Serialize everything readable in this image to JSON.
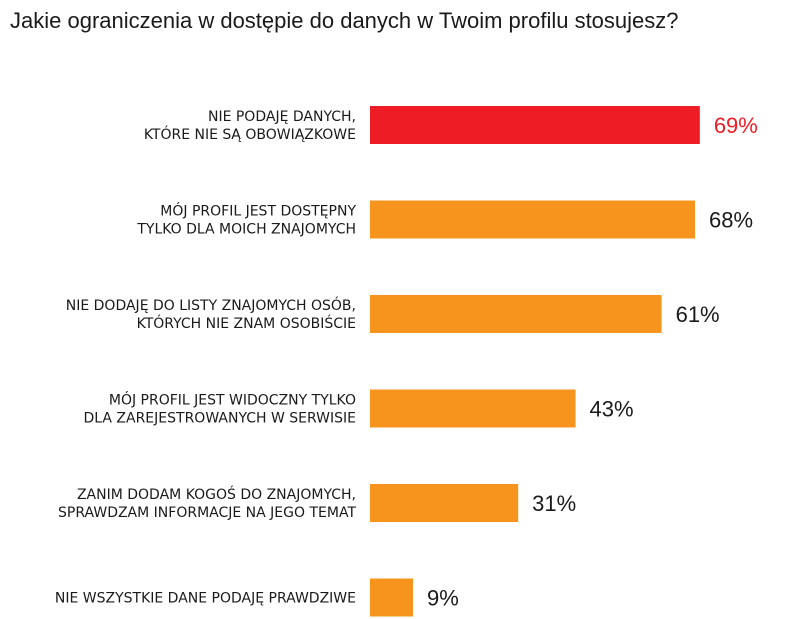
{
  "chart_data": {
    "type": "bar",
    "orientation": "horizontal",
    "title": "Jakie ograniczenia w dostępie do danych w Twoim profilu stosujesz?",
    "categories": [
      [
        "NIE PODAJĘ DANYCH,",
        "KTÓRE NIE SĄ OBOWIĄZKOWE"
      ],
      [
        "MÓJ PROFIL JEST DOSTĘPNY",
        "TYLKO DLA MOICH ZNAJOMYCH"
      ],
      [
        "NIE DODAJĘ DO LISTY ZNAJOMYCH OSÓB,",
        "KTÓRYCH NIE ZNAM OSOBIŚCIE"
      ],
      [
        "MÓJ PROFIL JEST WIDOCZNY TYLKO",
        "DLA ZAREJESTROWANYCH W SERWISIE"
      ],
      [
        "ZANIM DODAM KOGOŚ DO ZNAJOMYCH,",
        "SPRAWDZAM INFORMACJE NA JEGO TEMAT"
      ],
      [
        "NIE WSZYSTKIE DANE PODAJĘ PRAWDZIWE"
      ]
    ],
    "values": [
      69,
      68,
      61,
      43,
      31,
      9
    ],
    "value_labels": [
      "69%",
      "68%",
      "61%",
      "43%",
      "31%",
      "9%"
    ],
    "colors": {
      "highlight": "#ee1c25",
      "default": "#f7941d",
      "value_text_default": "#1a1a1a"
    },
    "highlight_index": 0,
    "xlim": [
      0,
      100
    ],
    "grid": false,
    "legend": "none"
  }
}
